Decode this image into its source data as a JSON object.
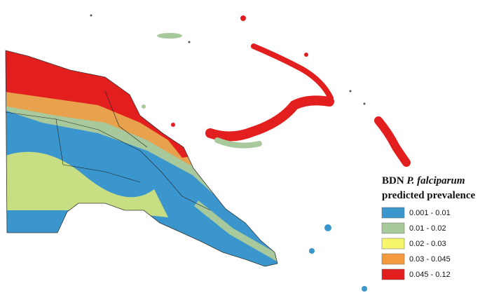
{
  "legend": {
    "title": {
      "prefix": "BDN",
      "species": "P. falciparum",
      "line2": "predicted prevalence"
    },
    "items": [
      {
        "label": "0.001 - 0.01",
        "color": "#3a96cc"
      },
      {
        "label": "0.01 - 0.02",
        "color": "#a7c99c"
      },
      {
        "label": "0.02 - 0.03",
        "color": "#f7f56b"
      },
      {
        "label": "0.03 - 0.045",
        "color": "#f39a3e"
      },
      {
        "label": "0.045 - 0.12",
        "color": "#e31e1e"
      }
    ]
  }
}
